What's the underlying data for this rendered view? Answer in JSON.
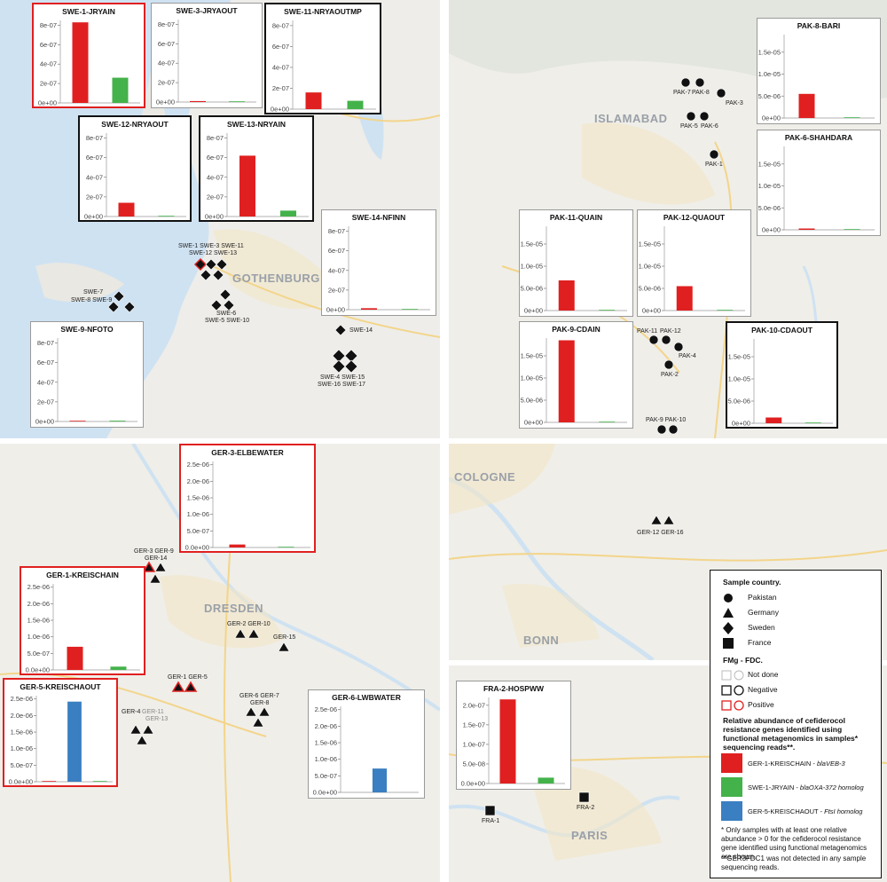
{
  "cities": {
    "gothenburg": "GOTHENBURG",
    "islamabad": "ISLAMABAD",
    "dresden": "DRESDEN",
    "cologne": "COLOGNE",
    "bonn": "BONN",
    "paris": "PARIS"
  },
  "colors": {
    "red": "#e02020",
    "green": "#44b24a",
    "blue": "#3a7fc1",
    "water": "#cfe2f2",
    "land": "#eeede9"
  },
  "marker_labels": {
    "swe_top": "SWE-1 SWE-3 SWE-11",
    "swe_top2": "SWE-12 SWE-13",
    "swe_7": "SWE-7",
    "swe_8_9": "SWE-8 SWE-9",
    "swe_6": "SWE-6",
    "swe_5_10": "SWE-5 SWE-10",
    "swe_14": "SWE-14",
    "swe_4_15": "SWE-4 SWE-15",
    "swe_16_17": "SWE-16 SWE-17",
    "pak_7": "PAK-7",
    "pak_8": "PAK-8",
    "pak_3": "PAK-3",
    "pak_5": "PAK-5",
    "pak_6": "PAK-6",
    "pak_1": "PAK-1",
    "pak_11": "PAK-11",
    "pak_12": "PAK-12",
    "pak_4": "PAK-4",
    "pak_2": "PAK-2",
    "pak_9_10": "PAK-9 PAK-10",
    "ger_3_9": "GER-3 GER-9",
    "ger_14": "GER-14",
    "ger_2_10": "GER-2 GER-10",
    "ger_15": "GER-15",
    "ger_1_5": "GER-1 GER-5",
    "ger_6_7": "GER-6 GER-7",
    "ger_8": "GER-8",
    "ger_4": "GER-4",
    "ger_11": "GER-11",
    "ger_13": "GER-13",
    "ger_12_16": "GER-12 GER-16",
    "fra_1": "FRA-1",
    "fra_2": "FRA-2"
  },
  "legend": {
    "country_title": "Sample country.",
    "pakistan": "Pakistan",
    "germany": "Germany",
    "sweden": "Sweden",
    "france": "France",
    "fdc_title": "FMg - FDC.",
    "not_done": "Not done",
    "negative": "Negative",
    "positive": "Positive",
    "abundance_title_1": "Relative abundance of cefiderocol",
    "abundance_title_2": "resistance genes identified using",
    "abundance_title_3": "functional metagenomics in samples*",
    "abundance_title_4": "sequencing reads**.",
    "gene_red_sample": "GER-1-KREISCHAIN - ",
    "gene_red_name": "blaVEB-3",
    "gene_green_sample": "SWE-1-JRYAIN - ",
    "gene_green_name": "blaOXA-372 homolog",
    "gene_blue_sample": "GER-5-KREISCHAOUT - ",
    "gene_blue_name": "FtsI homolog",
    "footnote_1": "* Only samples with at least one relative abundance > 0 for the cefiderocol resistance gene identified using functional metagenomics are shown.",
    "footnote_2": "**GER3FDC1 was not detected in any sample sequencing reads."
  },
  "chart_data": [
    {
      "type": "bar",
      "title": "SWE-1-JRYAIN",
      "yticks": [
        "0e+00",
        "2e-07",
        "4e-07",
        "6e-07",
        "8e-07"
      ],
      "ylim": [
        0,
        8.5e-07
      ],
      "series": [
        {
          "color": "red",
          "value": 8.3e-07
        },
        {
          "color": "green",
          "value": 2.6e-07
        }
      ]
    },
    {
      "type": "bar",
      "title": "SWE-3-JRYAOUT",
      "yticks": [
        "0e+00",
        "2e-07",
        "4e-07",
        "6e-07",
        "8e-07"
      ],
      "ylim": [
        0,
        8.5e-07
      ],
      "series": [
        {
          "color": "red",
          "value": 1e-08
        },
        {
          "color": "green",
          "value": 5e-09
        }
      ]
    },
    {
      "type": "bar",
      "title": "SWE-11-NRYAOUTMP",
      "yticks": [
        "0e+00",
        "2e-07",
        "4e-07",
        "6e-07",
        "8e-07"
      ],
      "ylim": [
        0,
        8.5e-07
      ],
      "series": [
        {
          "color": "red",
          "value": 1.6e-07
        },
        {
          "color": "green",
          "value": 8e-08
        }
      ]
    },
    {
      "type": "bar",
      "title": "SWE-12-NRYAOUT",
      "yticks": [
        "0e+00",
        "2e-07",
        "4e-07",
        "6e-07",
        "8e-07"
      ],
      "ylim": [
        0,
        8.5e-07
      ],
      "series": [
        {
          "color": "red",
          "value": 1.4e-07
        },
        {
          "color": "green",
          "value": 5e-09
        }
      ]
    },
    {
      "type": "bar",
      "title": "SWE-13-NRYAIN",
      "yticks": [
        "0e+00",
        "2e-07",
        "4e-07",
        "6e-07",
        "8e-07"
      ],
      "ylim": [
        0,
        8.5e-07
      ],
      "series": [
        {
          "color": "red",
          "value": 6.2e-07
        },
        {
          "color": "green",
          "value": 6e-08
        }
      ]
    },
    {
      "type": "bar",
      "title": "SWE-14-NFINN",
      "yticks": [
        "0e+00",
        "2e-07",
        "4e-07",
        "6e-07",
        "8e-07"
      ],
      "ylim": [
        0,
        8.5e-07
      ],
      "series": [
        {
          "color": "red",
          "value": 1.5e-08
        },
        {
          "color": "green",
          "value": 0
        }
      ]
    },
    {
      "type": "bar",
      "title": "SWE-9-NFOTO",
      "yticks": [
        "0e+00",
        "2e-07",
        "4e-07",
        "6e-07",
        "8e-07"
      ],
      "ylim": [
        0,
        8.5e-07
      ],
      "series": [
        {
          "color": "red",
          "value": 0
        },
        {
          "color": "green",
          "value": 8e-09
        }
      ]
    },
    {
      "type": "bar",
      "title": "PAK-8-BARI",
      "yticks": [
        "0e+00",
        "5.0e-06",
        "1.0e-05",
        "1.5e-05"
      ],
      "ylim": [
        0,
        1.9e-05
      ],
      "series": [
        {
          "color": "red",
          "value": 5.5e-06
        },
        {
          "color": "green",
          "value": 1e-07
        }
      ]
    },
    {
      "type": "bar",
      "title": "PAK-6-SHAHDARA",
      "yticks": [
        "0e+00",
        "5.0e-06",
        "1.0e-05",
        "1.5e-05"
      ],
      "ylim": [
        0,
        1.9e-05
      ],
      "series": [
        {
          "color": "red",
          "value": 3e-07
        },
        {
          "color": "green",
          "value": 0
        }
      ]
    },
    {
      "type": "bar",
      "title": "PAK-11-QUAIN",
      "yticks": [
        "0e+00",
        "5.0e-06",
        "1.0e-05",
        "1.5e-05"
      ],
      "ylim": [
        0,
        1.9e-05
      ],
      "series": [
        {
          "color": "red",
          "value": 6.8e-06
        },
        {
          "color": "green",
          "value": 0
        }
      ]
    },
    {
      "type": "bar",
      "title": "PAK-12-QUAOUT",
      "yticks": [
        "0e+00",
        "5.0e-06",
        "1.0e-05",
        "1.5e-05"
      ],
      "ylim": [
        0,
        1.9e-05
      ],
      "series": [
        {
          "color": "red",
          "value": 5.5e-06
        },
        {
          "color": "green",
          "value": 0
        }
      ]
    },
    {
      "type": "bar",
      "title": "PAK-9-CDAIN",
      "yticks": [
        "0e+00",
        "5.0e-06",
        "1.0e-05",
        "1.5e-05"
      ],
      "ylim": [
        0,
        1.9e-05
      ],
      "series": [
        {
          "color": "red",
          "value": 1.85e-05
        },
        {
          "color": "green",
          "value": 1e-07
        }
      ]
    },
    {
      "type": "bar",
      "title": "PAK-10-CDAOUT",
      "yticks": [
        "0e+00",
        "5.0e-06",
        "1.0e-05",
        "1.5e-05"
      ],
      "ylim": [
        0,
        1.9e-05
      ],
      "series": [
        {
          "color": "red",
          "value": 1.3e-06
        },
        {
          "color": "green",
          "value": 0
        }
      ]
    },
    {
      "type": "bar",
      "title": "GER-3-ELBEWATER",
      "yticks": [
        "0.0e+00",
        "5.0e-07",
        "1.0e-06",
        "1.5e-06",
        "2.0e-06",
        "2.5e-06"
      ],
      "ylim": [
        0,
        2.6e-06
      ],
      "series": [
        {
          "color": "red",
          "value": 9e-08
        },
        {
          "color": "green",
          "value": 0
        }
      ]
    },
    {
      "type": "bar",
      "title": "GER-1-KREISCHAIN",
      "yticks": [
        "0.0e+00",
        "5.0e-07",
        "1.0e-06",
        "1.5e-06",
        "2.0e-06",
        "2.5e-06"
      ],
      "ylim": [
        0,
        2.6e-06
      ],
      "series": [
        {
          "color": "red",
          "value": 7e-07
        },
        {
          "color": "green",
          "value": 1e-07
        }
      ]
    },
    {
      "type": "bar",
      "title": "GER-5-KREISCHAOUT",
      "yticks": [
        "0.0e+00",
        "5.0e-07",
        "1.0e-06",
        "1.5e-06",
        "2.0e-06",
        "2.5e-06"
      ],
      "ylim": [
        0,
        2.6e-06
      ],
      "series": [
        {
          "color": "red",
          "value": 2e-08
        },
        {
          "color": "blue",
          "value": 2.42e-06
        },
        {
          "color": "green",
          "value": 2e-08
        }
      ]
    },
    {
      "type": "bar",
      "title": "GER-6-LWBWATER",
      "yticks": [
        "0.0e+00",
        "5.0e-07",
        "1.0e-06",
        "1.5e-06",
        "2.0e-06",
        "2.5e-06"
      ],
      "ylim": [
        0,
        2.6e-06
      ],
      "series": [
        {
          "color": "blue",
          "value": 7.2e-07
        }
      ]
    },
    {
      "type": "bar",
      "title": "FRA-2-HOSPWW",
      "yticks": [
        "0.0e+00",
        "5.0e-08",
        "1.0e-07",
        "1.5e-07",
        "2.0e-07"
      ],
      "ylim": [
        0,
        2.2e-07
      ],
      "series": [
        {
          "color": "red",
          "value": 2.15e-07
        },
        {
          "color": "green",
          "value": 1.5e-08
        }
      ]
    }
  ]
}
